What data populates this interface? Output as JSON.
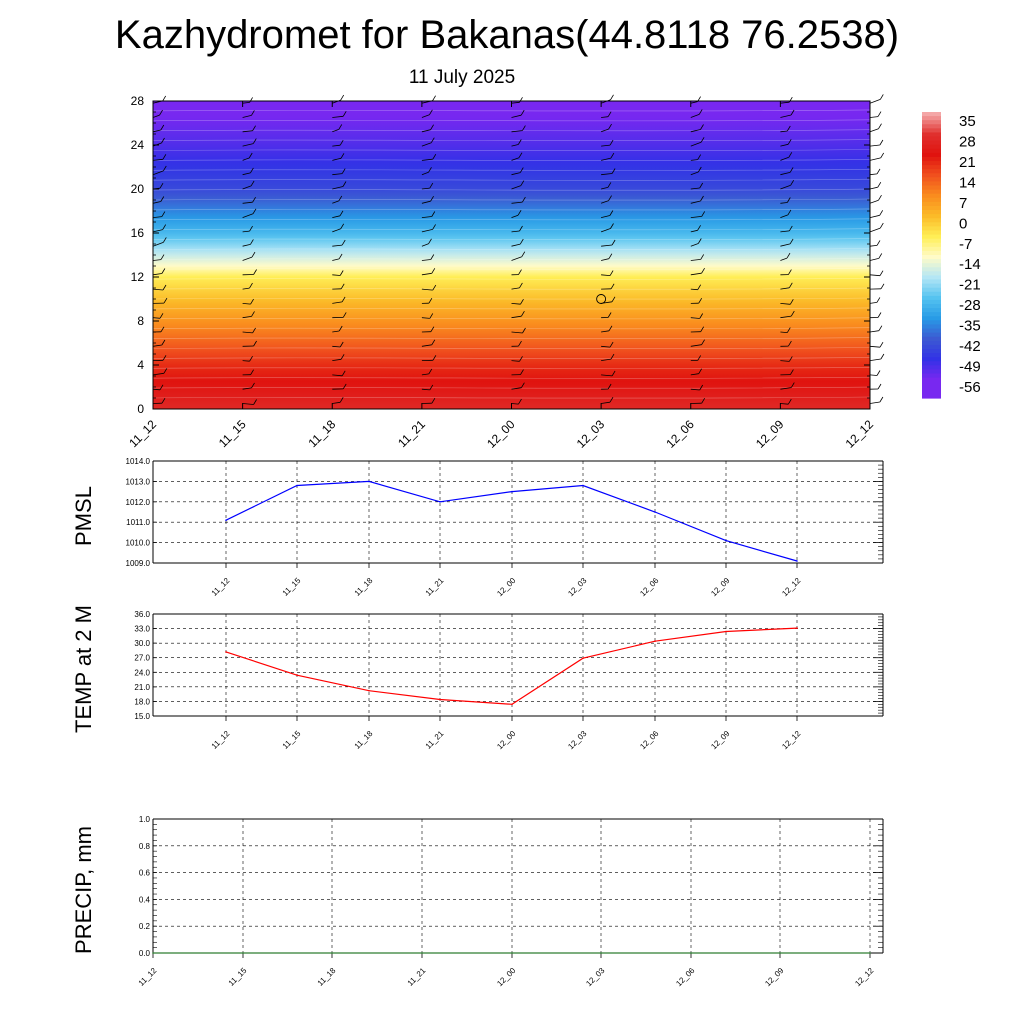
{
  "title": "Kazhydromet for Bakanas(44.8118 76.2538)",
  "subtitle": "11 July 2025",
  "time_labels": [
    "11_12",
    "11_15",
    "11_18",
    "11_21",
    "12_00",
    "12_03",
    "12_06",
    "12_09",
    "12_12"
  ],
  "chart_data": [
    {
      "type": "heatmap",
      "description_of_axes": "height (km) vs forecast time",
      "x_categories": [
        "11_12",
        "11_15",
        "11_18",
        "11_21",
        "12_00",
        "12_03",
        "12_06",
        "12_09",
        "12_12"
      ],
      "y_ticks": [
        "0",
        "4",
        "8",
        "12",
        "16",
        "20",
        "24",
        "28"
      ],
      "ylim": [
        0,
        28
      ],
      "colorbar": {
        "labels": [
          "35",
          "28",
          "21",
          "14",
          "7",
          "0",
          "-7",
          "-14",
          "-21",
          "-28",
          "-35",
          "-42",
          "-49",
          "-56"
        ],
        "colors": [
          "#f4a6a6",
          "#e0302e",
          "#e0130f",
          "#f0501e",
          "#fa8c1e",
          "#fbbb28",
          "#ffee55",
          "#fffbc8",
          "#b4e6f5",
          "#55c3f0",
          "#289be6",
          "#3c5ad2",
          "#3232e6",
          "#7828f0"
        ]
      },
      "temperature_profile": [
        {
          "height": 0,
          "value": 26
        },
        {
          "height": 4,
          "value": 18
        },
        {
          "height": 8,
          "value": 6
        },
        {
          "height": 12,
          "value": -7
        },
        {
          "height": 13,
          "value": -14
        },
        {
          "height": 16,
          "value": -30
        },
        {
          "height": 20,
          "value": -45
        },
        {
          "height": 24,
          "value": -52
        },
        {
          "height": 28,
          "value": -58
        }
      ],
      "marker": {
        "x": "12_03",
        "height": 10
      }
    },
    {
      "type": "line",
      "ylabel": "PMSL",
      "x": [
        "11_12",
        "11_15",
        "11_18",
        "11_21",
        "12_00",
        "12_03",
        "12_06",
        "12_09",
        "12_12"
      ],
      "series": [
        {
          "values": [
            1011.1,
            1012.8,
            1013.0,
            1012.0,
            1012.5,
            1012.8,
            1011.5,
            1010.1,
            1009.1
          ],
          "color": "#0000ff"
        }
      ],
      "y_ticks": [
        "1009.0",
        "1010.0",
        "1011.0",
        "1012.0",
        "1013.0",
        "1014.0"
      ],
      "ylim": [
        1009,
        1014
      ]
    },
    {
      "type": "line",
      "ylabel": "TEMP at 2 M",
      "x": [
        "11_12",
        "11_15",
        "11_18",
        "11_21",
        "12_00",
        "12_03",
        "12_06",
        "12_09",
        "12_12"
      ],
      "series": [
        {
          "values": [
            28.2,
            23.4,
            20.2,
            18.4,
            17.4,
            26.9,
            30.4,
            32.4,
            33.1
          ],
          "color": "#ff0000"
        }
      ],
      "y_ticks": [
        "15.0",
        "18.0",
        "21.0",
        "24.0",
        "27.0",
        "30.0",
        "33.0",
        "36.0"
      ],
      "ylim": [
        15,
        36
      ]
    },
    {
      "type": "line",
      "ylabel": "PRECIP, mm",
      "x": [
        "11_12",
        "11_15",
        "11_18",
        "11_21",
        "12_00",
        "12_03",
        "12_06",
        "12_09",
        "12_12"
      ],
      "series": [
        {
          "values": [
            0,
            0,
            0,
            0,
            0,
            0,
            0,
            0,
            0
          ],
          "color": "#2e7d32"
        }
      ],
      "y_ticks": [
        "0.0",
        "0.2",
        "0.4",
        "0.6",
        "0.8",
        "1.0"
      ],
      "ylim": [
        0,
        1
      ]
    }
  ]
}
